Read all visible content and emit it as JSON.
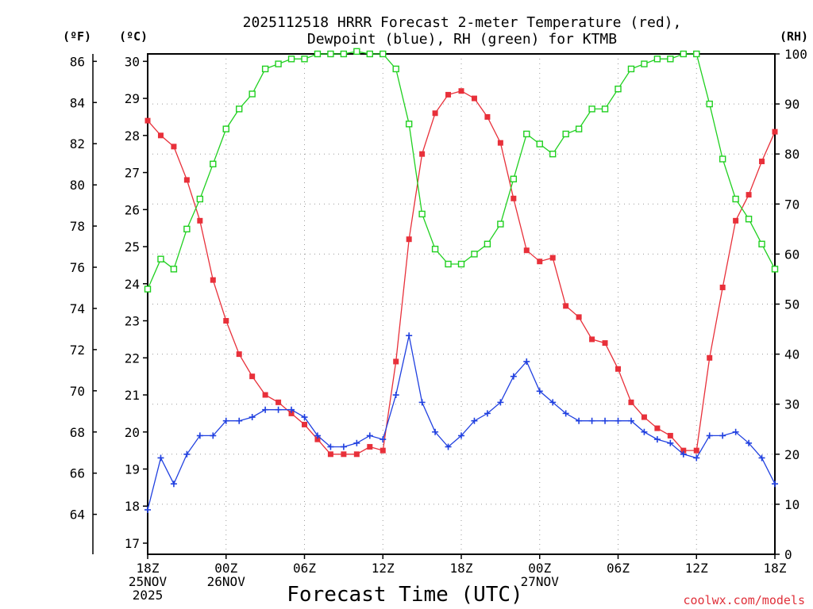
{
  "chart_data": {
    "type": "line",
    "title_lines": [
      "2025112518 HRRR Forecast 2-meter Temperature (red),",
      "Dewpoint (blue), RH (green) for KTMB"
    ],
    "xlabel": "Forecast Time (UTC)",
    "credit": "coolwx.com/models",
    "unit_labels": {
      "fahrenheit": "(ºF)",
      "celsius": "(ºC)",
      "rh": "(RH)"
    },
    "x_range_hours": [
      0,
      48
    ],
    "x_ticks": [
      {
        "hour": 0,
        "lines": [
          "18Z",
          "25NOV",
          "2025"
        ]
      },
      {
        "hour": 6,
        "lines": [
          "00Z",
          "26NOV"
        ]
      },
      {
        "hour": 12,
        "lines": [
          "06Z"
        ]
      },
      {
        "hour": 18,
        "lines": [
          "12Z"
        ]
      },
      {
        "hour": 24,
        "lines": [
          "18Z"
        ]
      },
      {
        "hour": 30,
        "lines": [
          "00Z",
          "27NOV"
        ]
      },
      {
        "hour": 36,
        "lines": [
          "06Z"
        ]
      },
      {
        "hour": 42,
        "lines": [
          "12Z"
        ]
      },
      {
        "hour": 48,
        "lines": [
          "18Z"
        ]
      }
    ],
    "celsius_axis": {
      "range": [
        16.7,
        30.2
      ],
      "ticks": [
        17,
        18,
        19,
        20,
        21,
        22,
        23,
        24,
        25,
        26,
        27,
        28,
        29,
        30
      ]
    },
    "fahrenheit_ticks": [
      64,
      66,
      68,
      70,
      72,
      74,
      76,
      78,
      80,
      82,
      84,
      86
    ],
    "rh_axis": {
      "range": [
        0,
        100
      ],
      "ticks": [
        0,
        10,
        20,
        30,
        40,
        50,
        60,
        70,
        80,
        90,
        100
      ]
    },
    "series": [
      {
        "name": "Temperature",
        "units": "°C",
        "color": "#e8303a",
        "marker": "filled-square",
        "values": [
          28.4,
          28.0,
          27.7,
          26.8,
          25.7,
          24.1,
          23.0,
          22.1,
          21.5,
          21.0,
          20.8,
          20.5,
          20.2,
          19.8,
          19.4,
          19.4,
          19.4,
          19.6,
          19.5,
          21.9,
          25.2,
          27.5,
          28.6,
          29.1,
          29.2,
          29.0,
          28.5,
          27.8,
          26.3,
          24.9,
          24.6,
          24.7,
          23.4,
          23.1,
          22.5,
          22.4,
          21.7,
          20.8,
          20.4,
          20.1,
          19.9,
          19.5,
          19.5,
          22.0,
          23.9,
          25.7,
          26.4,
          27.3,
          28.1
        ]
      },
      {
        "name": "Dewpoint",
        "units": "°C",
        "color": "#2040e0",
        "marker": "plus",
        "values": [
          17.9,
          19.3,
          18.6,
          19.4,
          19.9,
          19.9,
          20.3,
          20.3,
          20.4,
          20.6,
          20.6,
          20.6,
          20.4,
          19.9,
          19.6,
          19.6,
          19.7,
          19.9,
          19.8,
          21.0,
          22.6,
          20.8,
          20.0,
          19.6,
          19.9,
          20.3,
          20.5,
          20.8,
          21.5,
          21.9,
          21.1,
          20.8,
          20.5,
          20.3,
          20.3,
          20.3,
          20.3,
          20.3,
          20.0,
          19.8,
          19.7,
          19.4,
          19.3,
          19.9,
          19.9,
          20.0,
          19.7,
          19.3,
          18.6
        ]
      },
      {
        "name": "RH",
        "units": "%",
        "color": "#20d020",
        "marker": "open-square",
        "values": [
          53,
          59,
          57,
          65,
          71,
          78,
          85,
          89,
          92,
          97,
          98,
          99,
          99,
          100,
          100,
          100,
          100.5,
          100,
          100,
          97,
          86,
          68,
          61,
          58,
          58,
          60,
          62,
          66,
          75,
          84,
          82,
          80,
          84,
          85,
          89,
          89,
          93,
          97,
          98,
          99,
          99,
          100,
          100,
          90,
          79,
          71,
          67,
          62,
          57
        ]
      }
    ]
  }
}
